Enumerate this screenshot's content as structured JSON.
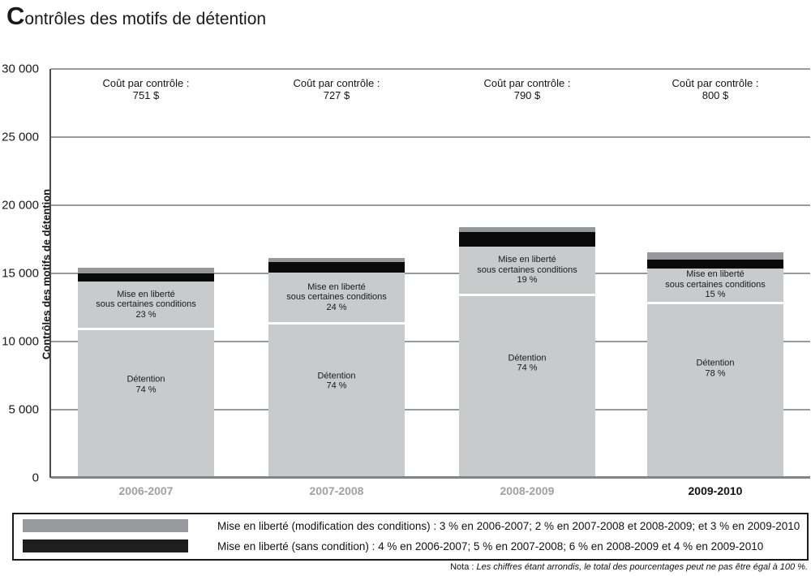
{
  "title": {
    "initial": "C",
    "rest": "ontrôles des motifs de détention"
  },
  "chart_data": {
    "type": "bar",
    "subtype": "stacked",
    "title": "Contrôles des motifs de détention",
    "ylabel": "Contrôles des motifs de détention",
    "ylim": [
      0,
      30000
    ],
    "yticks": [
      0,
      5000,
      10000,
      15000,
      20000,
      25000,
      30000
    ],
    "ytick_labels": [
      "0",
      "5 000",
      "10 000",
      "15 000",
      "20 000",
      "25 000",
      "30 000"
    ],
    "grid": "horizontal",
    "categories": [
      "2006-2007",
      "2007-2008",
      "2008-2009",
      "2009-2010"
    ],
    "emphasized_category": "2009-2010",
    "totals_reviews_estimated": [
      15250,
      15950,
      18200,
      16350
    ],
    "cost_annotation_label": "Coût par contrôle :",
    "cost_per_review_labels": [
      "751 $",
      "727 $",
      "790 $",
      "800 $"
    ],
    "series": [
      {
        "name": "Détention",
        "color": "#c9cacc",
        "values_pct": [
          74,
          74,
          74,
          78
        ],
        "pct_labels": [
          "74 %",
          "74 %",
          "74 %",
          "78 %"
        ]
      },
      {
        "name": "Mise en liberté sous certaines conditions",
        "color": "#c9cacc",
        "values_pct": [
          23,
          24,
          19,
          15
        ],
        "pct_labels": [
          "23 %",
          "24 %",
          "19 %",
          "15 %"
        ]
      },
      {
        "name": "Mise en liberté (sans condition)",
        "color": "#0a0a0a",
        "values_pct": [
          4,
          5,
          6,
          4
        ],
        "pct_labels": [
          "4 %",
          "5 %",
          "6 %",
          "4 %"
        ]
      },
      {
        "name": "Mise en liberté (modification des conditions)",
        "color": "#96989b",
        "values_pct": [
          3,
          2,
          2,
          3
        ],
        "pct_labels": [
          "3 %",
          "2 %",
          "2 %",
          "3 %"
        ]
      }
    ],
    "in_bar_labels": {
      "detention_name": "Détention",
      "conditional_release_lines": [
        "Mise en liberté",
        "sous certaines conditions"
      ]
    }
  },
  "legend": {
    "items": [
      {
        "swatch_color": "#98999c",
        "text": "Mise en liberté (modification des conditions) : 3 % en 2006-2007; 2 % en 2007-2008 et 2008-2009; et 3 % en 2009-2010"
      },
      {
        "swatch_color": "#1e1e1e",
        "text": "Mise en liberté (sans condition) : 4 % en 2006-2007; 5 % en 2007-2008; 6 % en 2008-2009 et 4 % en 2009-2010"
      }
    ]
  },
  "nota": {
    "prefix": "Nota :",
    "text": "Les chiffres étant arrondis, le total des pourcentages peut ne pas être égal à 100 %."
  }
}
